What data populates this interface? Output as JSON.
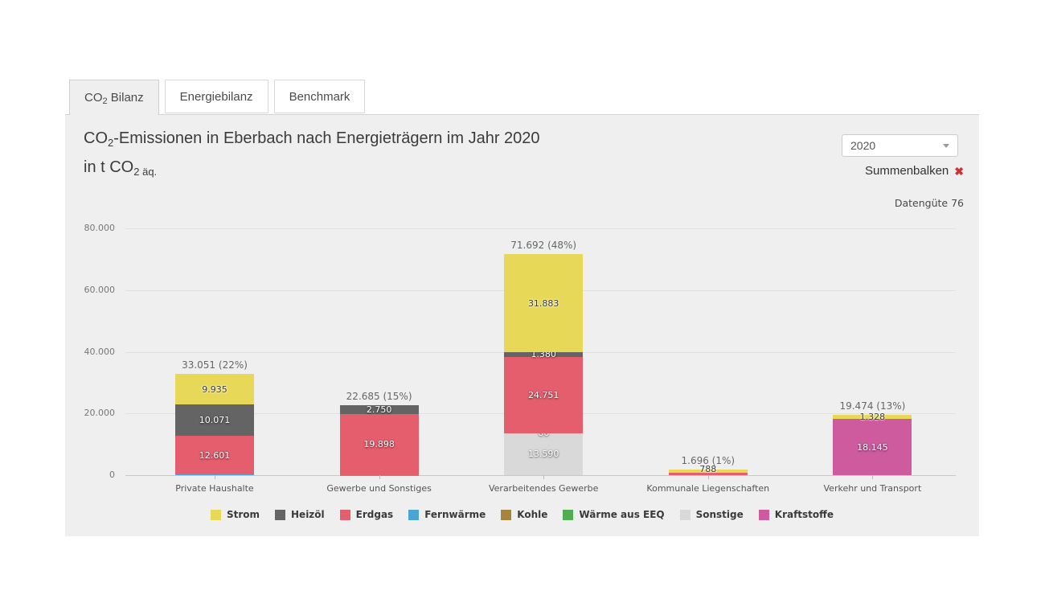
{
  "tabs": [
    {
      "pre": "CO",
      "sub": "2",
      "post": " Bilanz",
      "active": true
    },
    {
      "label": "Energiebilanz",
      "active": false
    },
    {
      "label": "Benchmark",
      "active": false
    }
  ],
  "header": {
    "title_line1": {
      "pre": "CO",
      "sub": "2",
      "post": "-Emissionen in Eberbach nach Energieträgern im Jahr 2020"
    },
    "title_line2": {
      "pre": "in t CO",
      "sub": "2",
      "small": " äq."
    },
    "year_select": {
      "value": "2020"
    },
    "sum_toggle": {
      "label": "Summenbalken",
      "icon": "✖",
      "icon_color": "#cc3333"
    },
    "data_quality": "Datengüte 76"
  },
  "chart_data": {
    "type": "bar",
    "stacked": true,
    "title": "CO2-Emissionen in Eberbach nach Energieträgern im Jahr 2020 in t CO2 äq.",
    "unit": "t CO2 äq.",
    "ylim": [
      0,
      80000
    ],
    "grid": true,
    "legend_position": "bottom",
    "yticks": [
      {
        "value": 0,
        "label": "0"
      },
      {
        "value": 20000,
        "label": "20.000"
      },
      {
        "value": 40000,
        "label": "40.000"
      },
      {
        "value": 60000,
        "label": "60.000"
      },
      {
        "value": 80000,
        "label": "80.000"
      }
    ],
    "legend": [
      {
        "name": "Strom",
        "color": "#e7d957"
      },
      {
        "name": "Heizöl",
        "color": "#646464"
      },
      {
        "name": "Erdgas",
        "color": "#e55e6d"
      },
      {
        "name": "Fernwärme",
        "color": "#4aa5d6"
      },
      {
        "name": "Kohle",
        "color": "#a5853e"
      },
      {
        "name": "Wärme aus EEQ",
        "color": "#52ad52"
      },
      {
        "name": "Sonstige",
        "color": "#d9d9d9"
      },
      {
        "name": "Kraftstoffe",
        "color": "#ce5b9e"
      }
    ],
    "categories": [
      {
        "label": "Private Haushalte",
        "total": 33051,
        "total_label": "33.051 (22%)",
        "segments": [
          {
            "series": "Fernwärme",
            "value": 186,
            "label": "186"
          },
          {
            "series": "Erdgas",
            "value": 12601,
            "label": "12.601"
          },
          {
            "series": "Heizöl",
            "value": 10071,
            "label": "10.071"
          },
          {
            "series": "Strom",
            "value": 9935,
            "label": "9.935"
          }
        ]
      },
      {
        "label": "Gewerbe und Sonstiges",
        "total": 22685,
        "total_label": "22.685 (15%)",
        "segments": [
          {
            "series": "Fernwärme",
            "value": 6,
            "label": "6"
          },
          {
            "series": "Erdgas",
            "value": 19898,
            "label": "19.898"
          },
          {
            "series": "Heizöl",
            "value": 2750,
            "label": "2.750"
          }
        ]
      },
      {
        "label": "Verarbeitendes Gewerbe",
        "total": 71692,
        "total_label": "71.692 (48%)",
        "segments": [
          {
            "series": "Sonstige",
            "value": 13590,
            "label": "13.590"
          },
          {
            "series": "Fernwärme",
            "value": 86,
            "label": "86"
          },
          {
            "series": "Erdgas",
            "value": 24751,
            "label": "24.751"
          },
          {
            "series": "Heizöl",
            "value": 1380,
            "label": "1.380"
          },
          {
            "series": "Strom",
            "value": 31883,
            "label": "31.883"
          }
        ]
      },
      {
        "label": "Kommunale Liegenschaften",
        "total": 1696,
        "total_label": "1.696 (1%)",
        "segments": [
          {
            "series": "Erdgas",
            "value": 908,
            "label": ""
          },
          {
            "series": "Strom",
            "value": 788,
            "label": "788"
          }
        ]
      },
      {
        "label": "Verkehr und Transport",
        "total": 19474,
        "total_label": "19.474 (13%)",
        "segments": [
          {
            "series": "Kraftstoffe",
            "value": 18145,
            "label": "18.145"
          },
          {
            "series": "Strom",
            "value": 1328,
            "label": "1.328"
          }
        ]
      }
    ]
  }
}
